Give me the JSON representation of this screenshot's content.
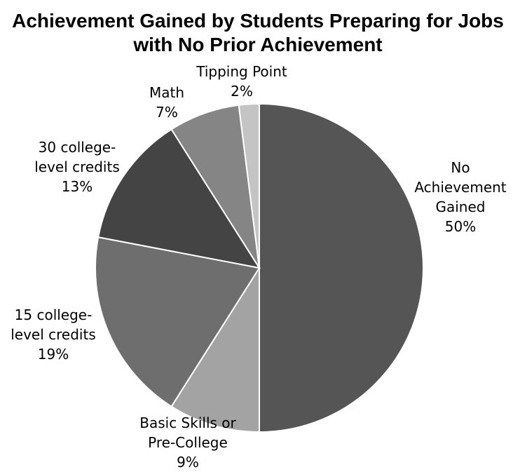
{
  "chart_data": {
    "type": "pie",
    "title_lines": [
      "Achievement Gained by Students Preparing for Jobs",
      "with No Prior Achievement"
    ],
    "categories": [
      "No Achievement Gained",
      "Basic Skills or Pre-College",
      "15 college-level credits",
      "30 college-level credits",
      "Math",
      "Tipping Point"
    ],
    "values": [
      50,
      9,
      19,
      13,
      7,
      2
    ],
    "start_angle_deg": 0,
    "direction": "clockwise",
    "colors": [
      "#555555",
      "#a3a3a3",
      "#6e6e6e",
      "#444444",
      "#858585",
      "#c4c4c4"
    ],
    "slices": [
      {
        "label_lines": [
          "No",
          "Achievement",
          "Gained"
        ],
        "percent_label": "50%"
      },
      {
        "label_lines": [
          "Basic Skills or",
          "Pre-College"
        ],
        "percent_label": "9%"
      },
      {
        "label_lines": [
          "15 college-",
          "level credits"
        ],
        "percent_label": "19%"
      },
      {
        "label_lines": [
          "30 college-",
          "level credits"
        ],
        "percent_label": "13%"
      },
      {
        "label_lines": [
          "Math"
        ],
        "percent_label": "7%"
      },
      {
        "label_lines": [
          "Tipping Point"
        ],
        "percent_label": "2%"
      }
    ]
  }
}
